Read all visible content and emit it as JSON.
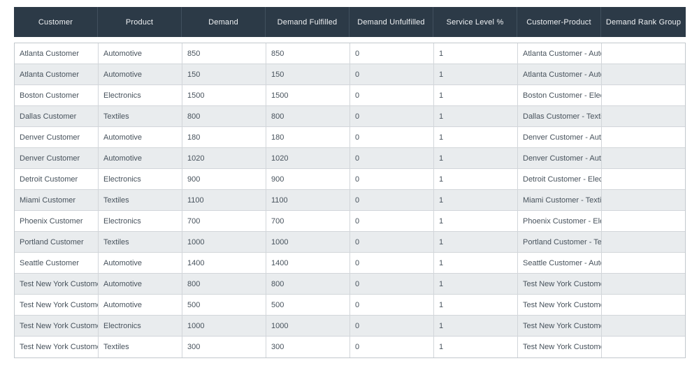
{
  "colors": {
    "header_bg": "#2c3a47",
    "header_text": "#f0f2f4",
    "header_separator": "#41505e",
    "row_bg": "#ffffff",
    "row_alt_bg": "#e9ecee",
    "border": "#c2c8cd",
    "cell_text": "#47525c"
  },
  "table": {
    "columns": [
      "Customer",
      "Product",
      "Demand",
      "Demand Fulfilled",
      "Demand Unfulfilled",
      "Service Level %",
      "Customer-Product",
      "Demand Rank Group"
    ],
    "rows": [
      [
        "Atlanta Customer",
        "Automotive",
        "850",
        "850",
        "0",
        "1",
        "Atlanta Customer - Automotive",
        ""
      ],
      [
        "Atlanta Customer",
        "Automotive",
        "150",
        "150",
        "0",
        "1",
        "Atlanta Customer - Automotive",
        ""
      ],
      [
        "Boston Customer",
        "Electronics",
        "1500",
        "1500",
        "0",
        "1",
        "Boston Customer - Electronics",
        ""
      ],
      [
        "Dallas Customer",
        "Textiles",
        "800",
        "800",
        "0",
        "1",
        "Dallas Customer - Textiles",
        ""
      ],
      [
        "Denver Customer",
        "Automotive",
        "180",
        "180",
        "0",
        "1",
        "Denver Customer - Automotive",
        ""
      ],
      [
        "Denver Customer",
        "Automotive",
        "1020",
        "1020",
        "0",
        "1",
        "Denver Customer - Automotive",
        ""
      ],
      [
        "Detroit Customer",
        "Electronics",
        "900",
        "900",
        "0",
        "1",
        "Detroit Customer - Electronics",
        ""
      ],
      [
        "Miami Customer",
        "Textiles",
        "1100",
        "1100",
        "0",
        "1",
        "Miami Customer - Textiles",
        ""
      ],
      [
        "Phoenix Customer",
        "Electronics",
        "700",
        "700",
        "0",
        "1",
        "Phoenix Customer - Electronics",
        ""
      ],
      [
        "Portland Customer",
        "Textiles",
        "1000",
        "1000",
        "0",
        "1",
        "Portland Customer - Textiles",
        ""
      ],
      [
        "Seattle Customer",
        "Automotive",
        "1400",
        "1400",
        "0",
        "1",
        "Seattle Customer - Automotive",
        ""
      ],
      [
        "Test New York Customer",
        "Automotive",
        "800",
        "800",
        "0",
        "1",
        "Test New York Customer - Automotive",
        ""
      ],
      [
        "Test New York Customer",
        "Automotive",
        "500",
        "500",
        "0",
        "1",
        "Test New York Customer - Automotive",
        ""
      ],
      [
        "Test New York Customer",
        "Electronics",
        "1000",
        "1000",
        "0",
        "1",
        "Test New York Customer - Electronics",
        ""
      ],
      [
        "Test New York Customer",
        "Textiles",
        "300",
        "300",
        "0",
        "1",
        "Test New York Customer - Textiles",
        ""
      ]
    ]
  }
}
